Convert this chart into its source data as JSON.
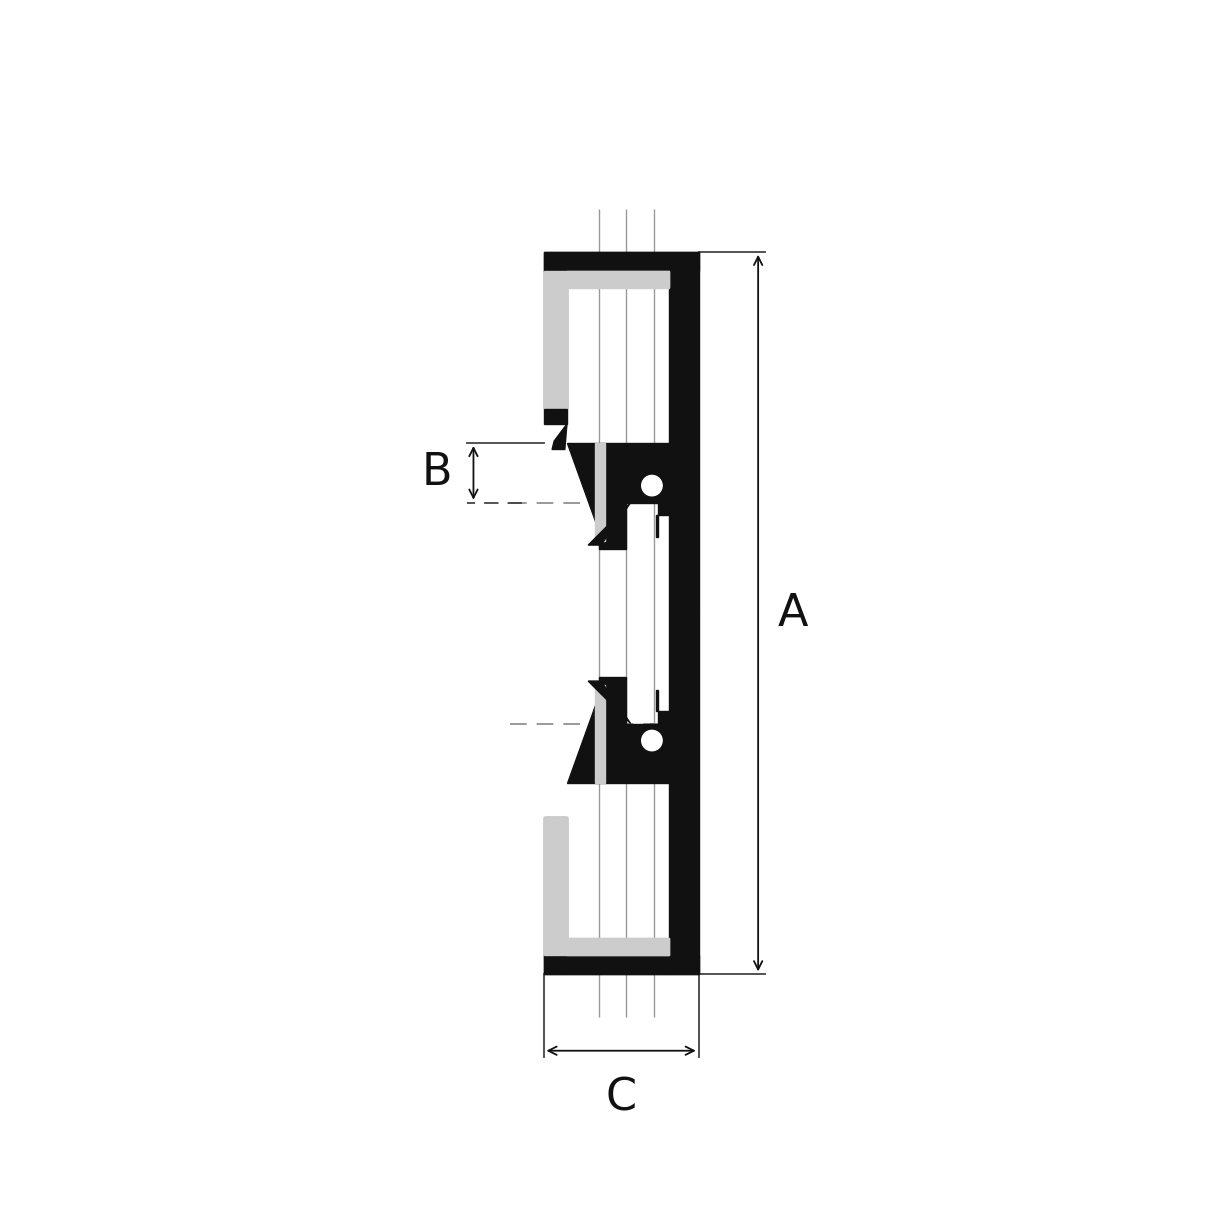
{
  "bg_color": "#ffffff",
  "fill_black": "#111111",
  "fill_gray": "#cccccc",
  "fill_white": "#ffffff",
  "dim_color": "#333333",
  "fig_size": [
    12.14,
    12.14
  ],
  "dpi": 100,
  "label_A": "A",
  "label_B": "B",
  "label_C": "C",
  "label_fontsize": 32,
  "shaft_line_color": "#999999",
  "dim_line_color": "#444444"
}
